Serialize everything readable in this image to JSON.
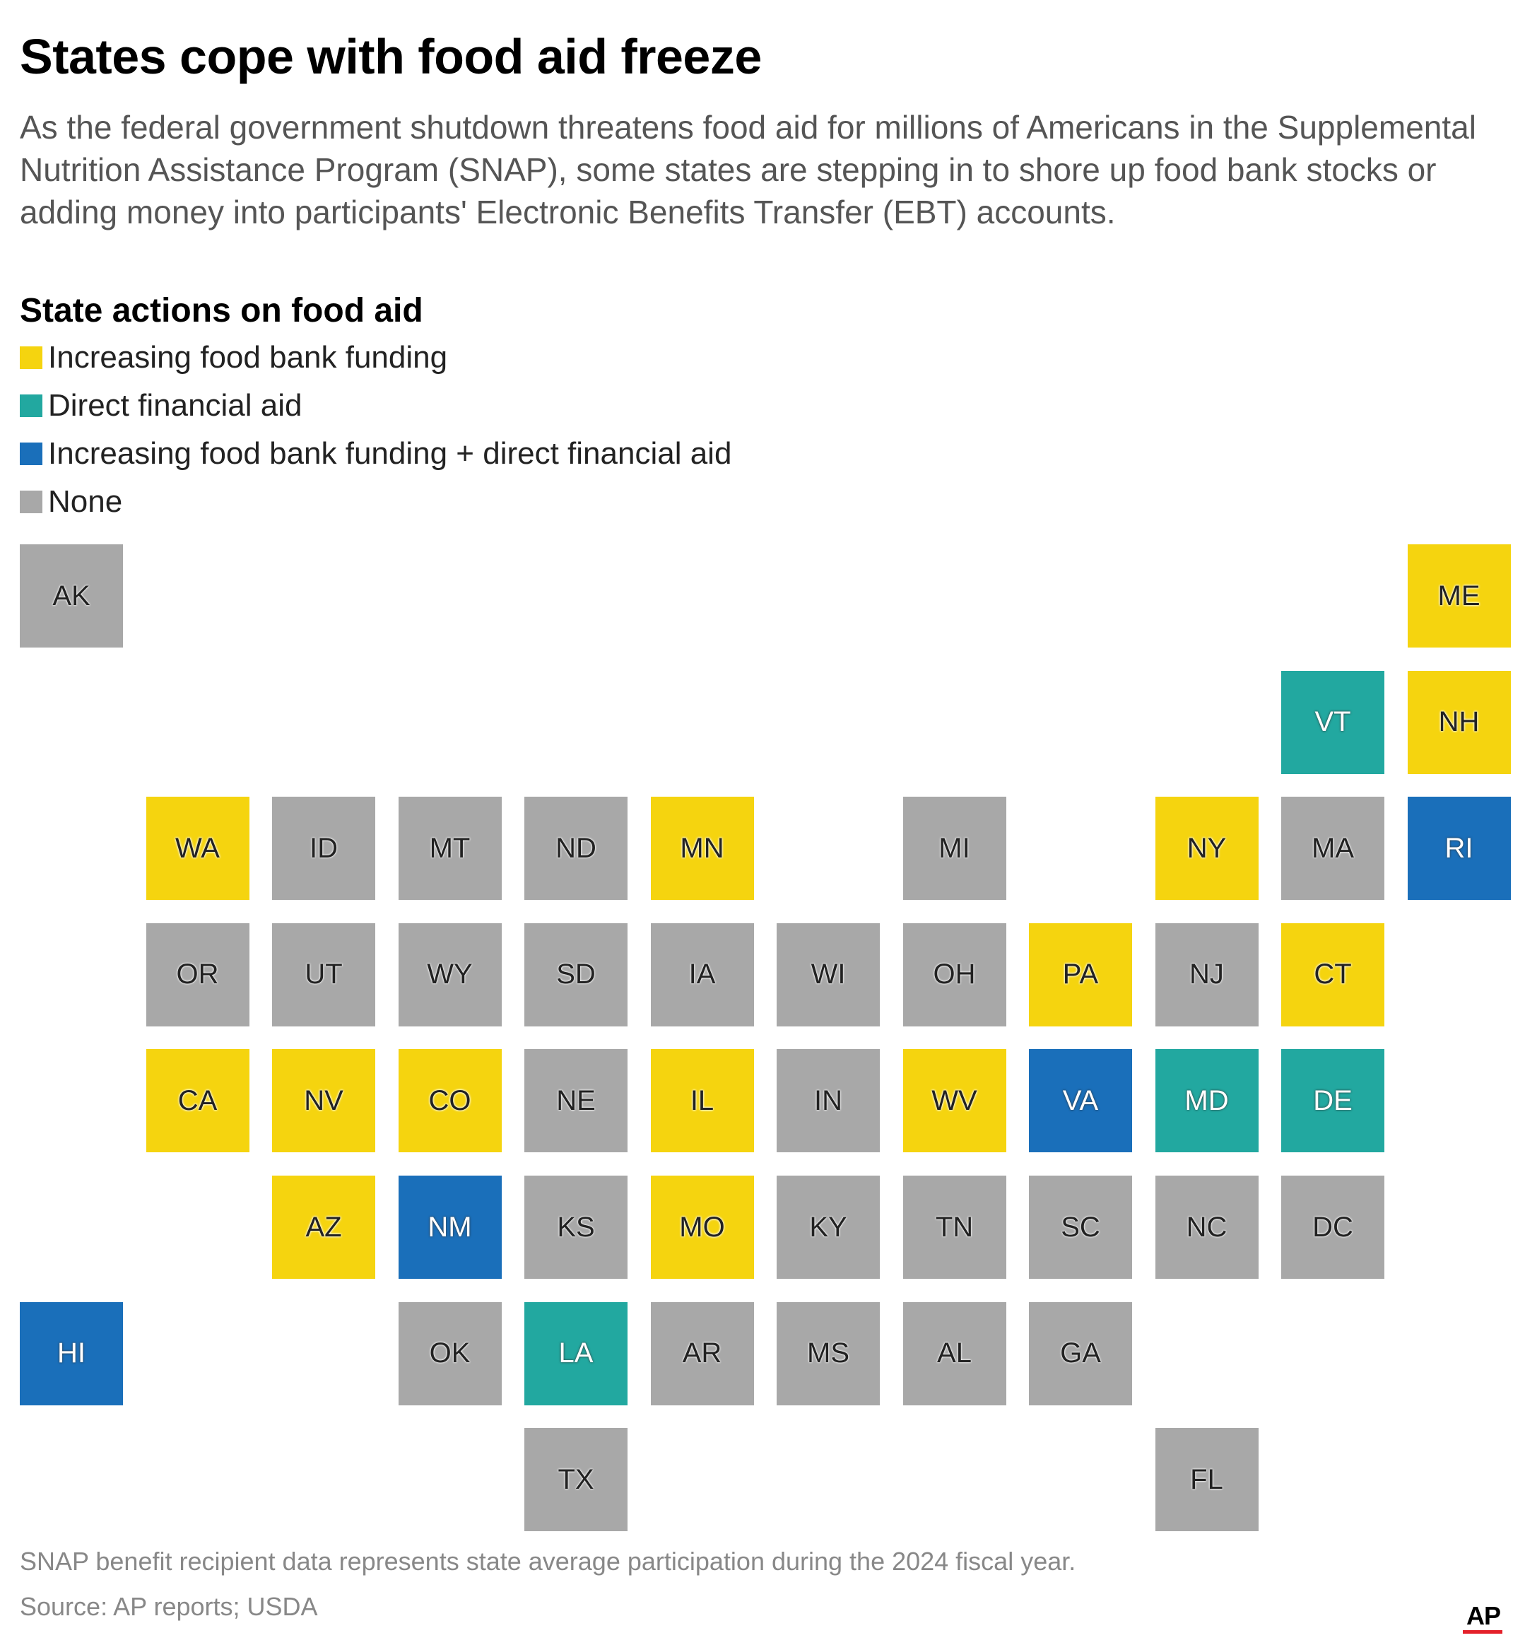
{
  "title": "States cope with food aid freeze",
  "subtitle": "As the federal government shutdown threatens food aid for millions of Americans in the Supplemental Nutrition Assistance Program (SNAP), some states are stepping in to shore up food bank stocks or adding money into participants' Electronic Benefits Transfer (EBT) accounts.",
  "legend": {
    "title": "State actions on food aid",
    "items": [
      {
        "key": "food_bank",
        "label": "Increasing food bank funding",
        "color": "#f5d40f"
      },
      {
        "key": "direct",
        "label": "Direct financial aid",
        "color": "#22a8a0"
      },
      {
        "key": "both",
        "label": "Increasing food bank funding + direct financial aid",
        "color": "#1a6fba"
      },
      {
        "key": "none",
        "label": "None",
        "color": "#a8a8a8"
      }
    ]
  },
  "states": [
    {
      "abbr": "AK",
      "row": 0,
      "col": 0,
      "status": "none"
    },
    {
      "abbr": "ME",
      "row": 0,
      "col": 11,
      "status": "food_bank"
    },
    {
      "abbr": "VT",
      "row": 1,
      "col": 10,
      "status": "direct"
    },
    {
      "abbr": "NH",
      "row": 1,
      "col": 11,
      "status": "food_bank"
    },
    {
      "abbr": "WA",
      "row": 2,
      "col": 1,
      "status": "food_bank"
    },
    {
      "abbr": "ID",
      "row": 2,
      "col": 2,
      "status": "none"
    },
    {
      "abbr": "MT",
      "row": 2,
      "col": 3,
      "status": "none"
    },
    {
      "abbr": "ND",
      "row": 2,
      "col": 4,
      "status": "none"
    },
    {
      "abbr": "MN",
      "row": 2,
      "col": 5,
      "status": "food_bank"
    },
    {
      "abbr": "MI",
      "row": 2,
      "col": 7,
      "status": "none"
    },
    {
      "abbr": "NY",
      "row": 2,
      "col": 9,
      "status": "food_bank"
    },
    {
      "abbr": "MA",
      "row": 2,
      "col": 10,
      "status": "none"
    },
    {
      "abbr": "RI",
      "row": 2,
      "col": 11,
      "status": "both"
    },
    {
      "abbr": "OR",
      "row": 3,
      "col": 1,
      "status": "none"
    },
    {
      "abbr": "UT",
      "row": 3,
      "col": 2,
      "status": "none"
    },
    {
      "abbr": "WY",
      "row": 3,
      "col": 3,
      "status": "none"
    },
    {
      "abbr": "SD",
      "row": 3,
      "col": 4,
      "status": "none"
    },
    {
      "abbr": "IA",
      "row": 3,
      "col": 5,
      "status": "none"
    },
    {
      "abbr": "WI",
      "row": 3,
      "col": 6,
      "status": "none"
    },
    {
      "abbr": "OH",
      "row": 3,
      "col": 7,
      "status": "none"
    },
    {
      "abbr": "PA",
      "row": 3,
      "col": 8,
      "status": "food_bank"
    },
    {
      "abbr": "NJ",
      "row": 3,
      "col": 9,
      "status": "none"
    },
    {
      "abbr": "CT",
      "row": 3,
      "col": 10,
      "status": "food_bank"
    },
    {
      "abbr": "CA",
      "row": 4,
      "col": 1,
      "status": "food_bank"
    },
    {
      "abbr": "NV",
      "row": 4,
      "col": 2,
      "status": "food_bank"
    },
    {
      "abbr": "CO",
      "row": 4,
      "col": 3,
      "status": "food_bank"
    },
    {
      "abbr": "NE",
      "row": 4,
      "col": 4,
      "status": "none"
    },
    {
      "abbr": "IL",
      "row": 4,
      "col": 5,
      "status": "food_bank"
    },
    {
      "abbr": "IN",
      "row": 4,
      "col": 6,
      "status": "none"
    },
    {
      "abbr": "WV",
      "row": 4,
      "col": 7,
      "status": "food_bank"
    },
    {
      "abbr": "VA",
      "row": 4,
      "col": 8,
      "status": "both"
    },
    {
      "abbr": "MD",
      "row": 4,
      "col": 9,
      "status": "direct"
    },
    {
      "abbr": "DE",
      "row": 4,
      "col": 10,
      "status": "direct"
    },
    {
      "abbr": "AZ",
      "row": 5,
      "col": 2,
      "status": "food_bank"
    },
    {
      "abbr": "NM",
      "row": 5,
      "col": 3,
      "status": "both"
    },
    {
      "abbr": "KS",
      "row": 5,
      "col": 4,
      "status": "none"
    },
    {
      "abbr": "MO",
      "row": 5,
      "col": 5,
      "status": "food_bank"
    },
    {
      "abbr": "KY",
      "row": 5,
      "col": 6,
      "status": "none"
    },
    {
      "abbr": "TN",
      "row": 5,
      "col": 7,
      "status": "none"
    },
    {
      "abbr": "SC",
      "row": 5,
      "col": 8,
      "status": "none"
    },
    {
      "abbr": "NC",
      "row": 5,
      "col": 9,
      "status": "none"
    },
    {
      "abbr": "DC",
      "row": 5,
      "col": 10,
      "status": "none"
    },
    {
      "abbr": "HI",
      "row": 6,
      "col": 0,
      "status": "both"
    },
    {
      "abbr": "OK",
      "row": 6,
      "col": 3,
      "status": "none"
    },
    {
      "abbr": "LA",
      "row": 6,
      "col": 4,
      "status": "direct"
    },
    {
      "abbr": "AR",
      "row": 6,
      "col": 5,
      "status": "none"
    },
    {
      "abbr": "MS",
      "row": 6,
      "col": 6,
      "status": "none"
    },
    {
      "abbr": "AL",
      "row": 6,
      "col": 7,
      "status": "none"
    },
    {
      "abbr": "GA",
      "row": 6,
      "col": 8,
      "status": "none"
    },
    {
      "abbr": "TX",
      "row": 7,
      "col": 4,
      "status": "none"
    },
    {
      "abbr": "FL",
      "row": 7,
      "col": 9,
      "status": "none"
    }
  ],
  "footer": {
    "note": "SNAP benefit recipient data represents state average participation during the 2024 fiscal year.",
    "source": "Source: AP reports; USDA"
  },
  "logo": {
    "text": "AP"
  }
}
